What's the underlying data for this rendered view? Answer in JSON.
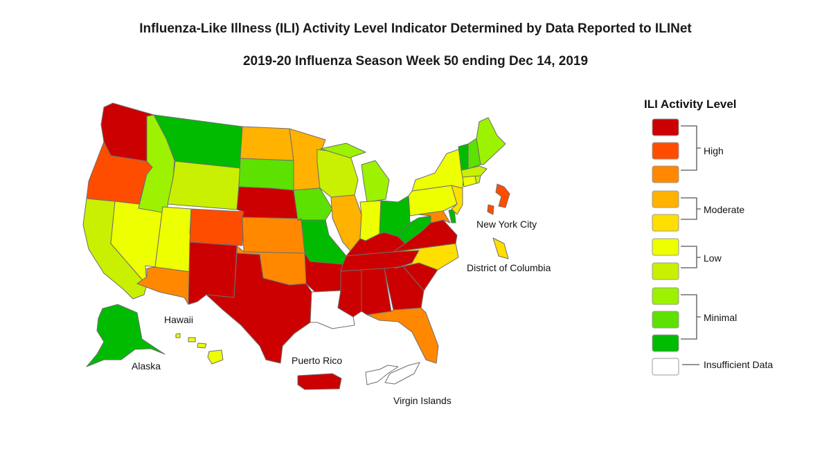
{
  "title": "Influenza-Like Illness (ILI) Activity Level Indicator Determined by Data Reported to ILINet",
  "subtitle": "2019-20 Influenza Season Week 50 ending Dec 14, 2019",
  "legend": {
    "title": "ILI Activity Level",
    "levels": [
      {
        "level": 10,
        "color": "#cc0000"
      },
      {
        "level": 9,
        "color": "#ff4d00"
      },
      {
        "level": 8,
        "color": "#ff8800"
      },
      {
        "level": 7,
        "color": "#ffb200"
      },
      {
        "level": 6,
        "color": "#ffdf00"
      },
      {
        "level": 5,
        "color": "#eeff00"
      },
      {
        "level": 4,
        "color": "#c8f000"
      },
      {
        "level": 3,
        "color": "#9cf200"
      },
      {
        "level": 2,
        "color": "#5de100"
      },
      {
        "level": 1,
        "color": "#00bb00"
      },
      {
        "level": 0,
        "color": "#ffffff"
      }
    ],
    "groups": {
      "high": "High",
      "moderate": "Moderate",
      "low": "Low",
      "minimal": "Minimal",
      "insufficient": "Insufficient Data"
    }
  },
  "labels": {
    "new_york_city": "New York City",
    "district_of_columbia": "District of Columbia",
    "hawaii": "Hawaii",
    "alaska": "Alaska",
    "puerto_rico": "Puerto Rico",
    "virgin_islands": "Virgin Islands"
  },
  "chart_data": {
    "type": "choropleth",
    "levels": {
      "WA": 10,
      "OR": 9,
      "CA": 4,
      "NV": 5,
      "ID": 3,
      "MT": 1,
      "WY": 4,
      "UT": 5,
      "AZ": 8,
      "CO": 9,
      "NM": 10,
      "ND": 7,
      "SD": 2,
      "NE": 10,
      "KS": 8,
      "OK": 8,
      "TX": 10,
      "MN": 7,
      "IA": 2,
      "MO": 1,
      "AR": 10,
      "LA": 0,
      "WI": 4,
      "IL": 7,
      "MI": 3,
      "IN": 5,
      "OH": 1,
      "KY": 10,
      "TN": 10,
      "MS": 10,
      "AL": 10,
      "GA": 10,
      "FL": 8,
      "SC": 10,
      "NC": 6,
      "VA": 10,
      "WV": 1,
      "MD": 8,
      "DE": 1,
      "PA": 5,
      "NJ": 6,
      "NY": 5,
      "CT": 5,
      "RI": 4,
      "MA": 4,
      "VT": 1,
      "NH": 2,
      "ME": 3,
      "AK": 1,
      "HI": 5,
      "NYC": 9,
      "DC": 6,
      "PR": 10,
      "VI": 0
    }
  }
}
